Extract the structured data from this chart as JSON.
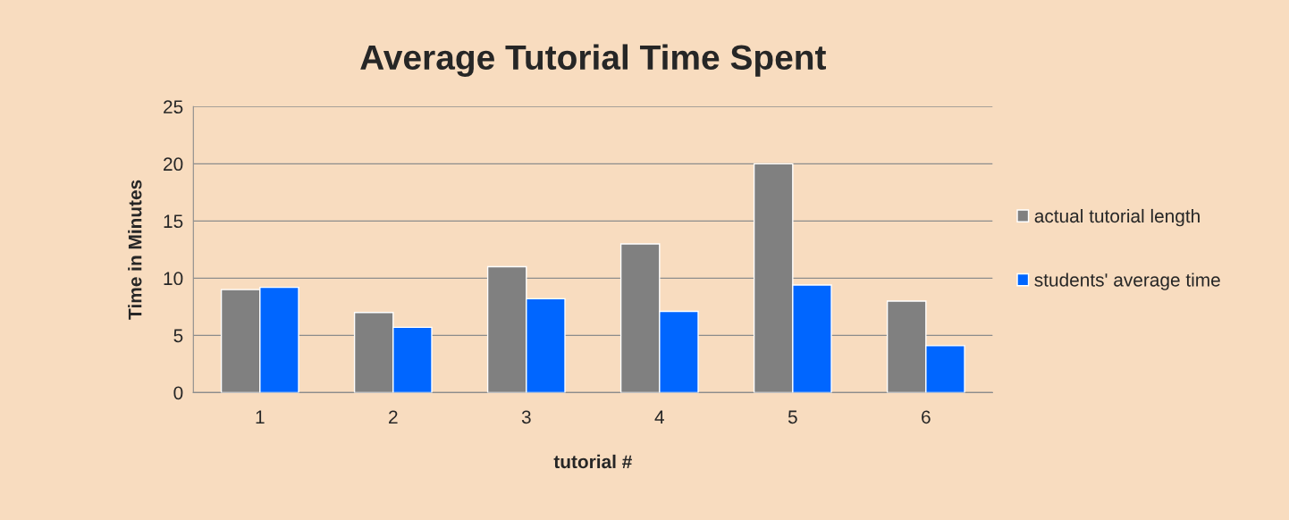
{
  "chart_data": {
    "type": "bar",
    "title": "Average Tutorial Time Spent",
    "xlabel": "tutorial #",
    "ylabel": "Time in Minutes",
    "categories": [
      "1",
      "2",
      "3",
      "4",
      "5",
      "6"
    ],
    "series": [
      {
        "name": "actual tutorial length",
        "color": "#808080",
        "values": [
          9,
          7,
          11,
          13,
          20,
          8
        ]
      },
      {
        "name": "students' average time",
        "color": "#0066ff",
        "values": [
          9.2,
          5.7,
          8.2,
          7.1,
          9.4,
          4.1
        ]
      }
    ],
    "ylim": [
      0,
      25
    ],
    "yticks": [
      0,
      5,
      10,
      15,
      20,
      25
    ],
    "grid": "y",
    "legend": "right"
  }
}
